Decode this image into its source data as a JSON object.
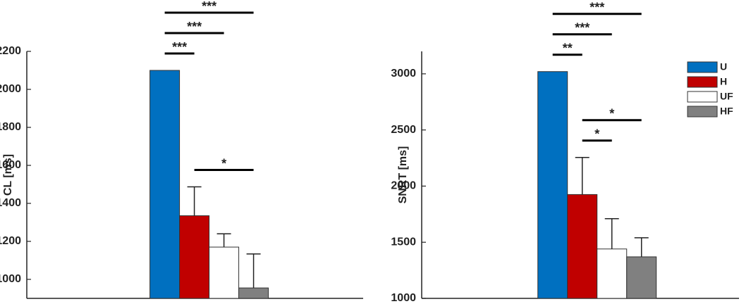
{
  "chart_data": [
    {
      "type": "bar",
      "ylabel": "CL [ms]",
      "categories": [
        "U",
        "H",
        "UF",
        "HF"
      ],
      "values": [
        2100,
        1335,
        1170,
        955
      ],
      "errors": [
        0,
        152,
        70,
        179
      ],
      "colors": [
        "#0070c0",
        "#c00000",
        "#ffffff",
        "#808080"
      ],
      "ylim": [
        900,
        2200
      ],
      "yticks": [
        1000,
        1200,
        1400,
        1600,
        1800,
        2000,
        2200
      ],
      "legend": false,
      "annotations": [
        {
          "from": 0,
          "to": 1,
          "label": "***"
        },
        {
          "from": 0,
          "to": 2,
          "label": "***"
        },
        {
          "from": 0,
          "to": 3,
          "label": "***"
        },
        {
          "from": 1,
          "to": 3,
          "label": "*"
        }
      ]
    },
    {
      "type": "bar",
      "ylabel": "SNRT [ms]",
      "categories": [
        "U",
        "H",
        "UF",
        "HF"
      ],
      "values": [
        3020,
        1925,
        1440,
        1370
      ],
      "errors": [
        0,
        330,
        270,
        170
      ],
      "colors": [
        "#0070c0",
        "#c00000",
        "#ffffff",
        "#808080"
      ],
      "ylim": [
        1000,
        3200
      ],
      "yticks": [
        1000,
        1500,
        2000,
        2500,
        3000
      ],
      "legend": "upper right",
      "annotations": [
        {
          "from": 0,
          "to": 1,
          "label": "**"
        },
        {
          "from": 0,
          "to": 2,
          "label": "***"
        },
        {
          "from": 0,
          "to": 3,
          "label": "***"
        },
        {
          "from": 1,
          "to": 2,
          "label": "*"
        },
        {
          "from": 1,
          "to": 3,
          "label": "*"
        }
      ]
    }
  ]
}
